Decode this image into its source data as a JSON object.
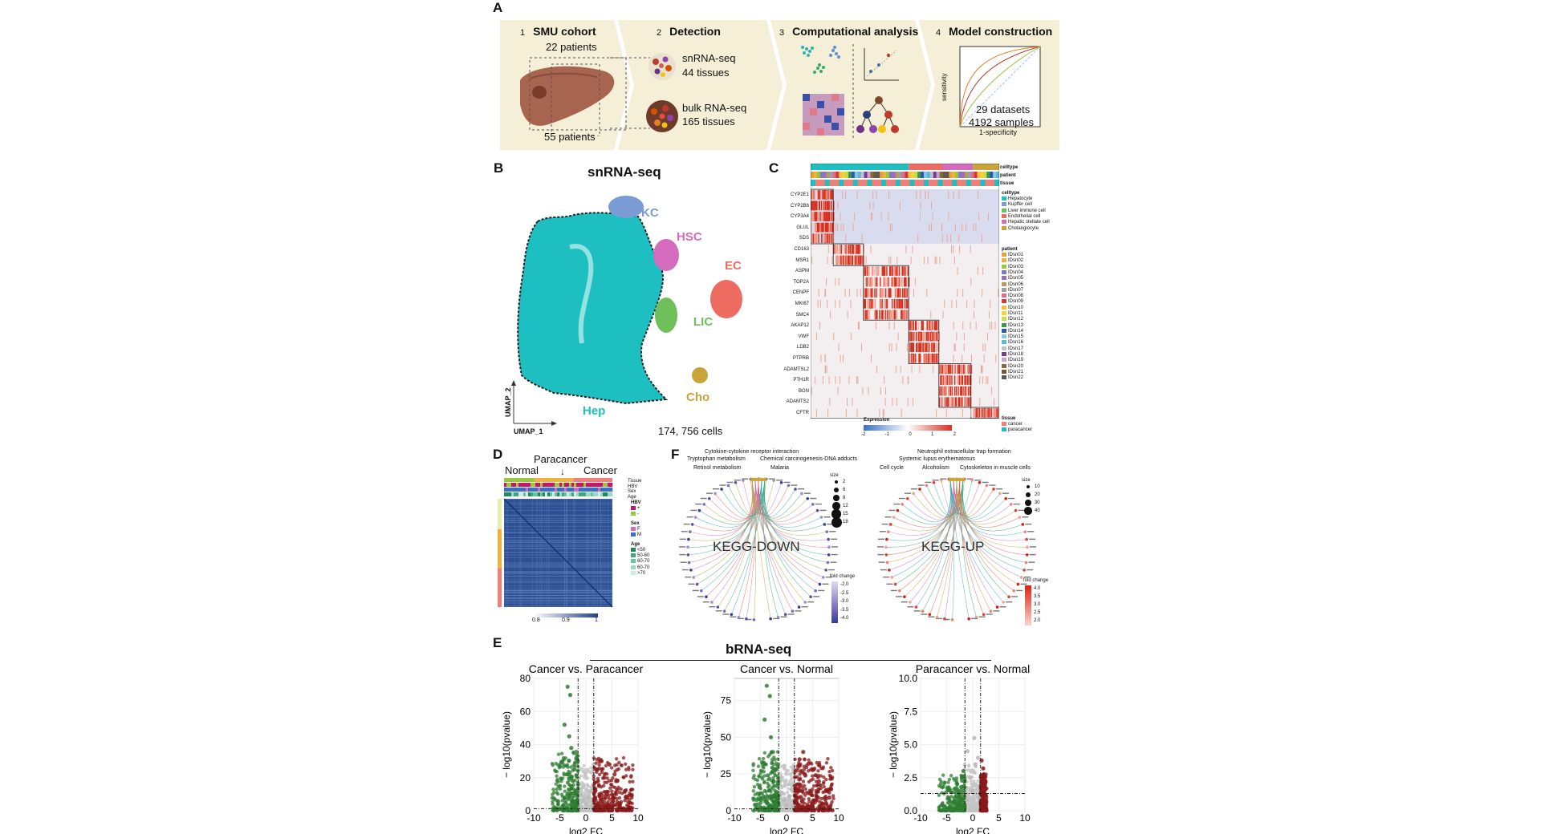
{
  "panels": {
    "A": "A",
    "B": "B",
    "C": "C",
    "D": "D",
    "E": "E",
    "F": "F"
  },
  "panelA": {
    "steps": [
      {
        "num": "1",
        "title": "SMU cohort"
      },
      {
        "num": "2",
        "title": "Detection"
      },
      {
        "num": "3",
        "title": "Computational analysis"
      },
      {
        "num": "4",
        "title": "Model construction"
      }
    ],
    "patients22": "22 patients",
    "patients55": "55 patients",
    "snrna": "snRNA-seq",
    "snrna_tissues": "44 tissues",
    "bulk": "bulk RNA-seq",
    "bulk_tissues": "165 tissues",
    "datasets": "29 datasets",
    "samples": "4192 samples",
    "roc_y": "sensitivity",
    "roc_x": "1-specificity"
  },
  "panelB": {
    "title": "snRNA-seq",
    "clusters": [
      "KC",
      "HSC",
      "EC",
      "LIC",
      "Cho",
      "Hep"
    ],
    "cluster_colors": {
      "KC": "#7b9bd6",
      "HSC": "#d46bbf",
      "EC": "#ee6b62",
      "LIC": "#6fbf5a",
      "Cho": "#c9a43a",
      "Hep": "#1dbfc1"
    },
    "umap_x": "UMAP_1",
    "umap_y": "UMAP_2",
    "cells": "174, 756 cells"
  },
  "panelC": {
    "bar_labels": [
      "celltype",
      "patient",
      "tissue"
    ],
    "genes": [
      "CYP2E1",
      "CYP2B6",
      "CYP3A4",
      "GLUL",
      "SDS",
      "CD163",
      "MSR1",
      "ASPM",
      "TOP2A",
      "CENPF",
      "MKI67",
      "SMC4",
      "AKAP12",
      "VWF",
      "LDB2",
      "PTPRB",
      "ADAMTSL2",
      "PTH1R",
      "BGN",
      "ADAMTS2",
      "CFTR"
    ],
    "celltype_title": "celltype",
    "celltypes": [
      {
        "name": "Hepatocyte",
        "color": "#1dbfc1"
      },
      {
        "name": "Kupffer cell",
        "color": "#7b9bd6"
      },
      {
        "name": "Liver immune cell",
        "color": "#6fbf5a"
      },
      {
        "name": "Endothelial cell",
        "color": "#ee6b62"
      },
      {
        "name": "Hepatic stellate cell",
        "color": "#d46bbf"
      },
      {
        "name": "Cholangiocyte",
        "color": "#c9a43a"
      }
    ],
    "patient_title": "patient",
    "patients": [
      {
        "name": "IDsn01",
        "color": "#e8a13a"
      },
      {
        "name": "IDsn02",
        "color": "#f0b23c"
      },
      {
        "name": "IDsn03",
        "color": "#9bc53d"
      },
      {
        "name": "IDsn04",
        "color": "#7b7fc2"
      },
      {
        "name": "IDsn05",
        "color": "#9d6fb8"
      },
      {
        "name": "IDsn06",
        "color": "#b89a5a"
      },
      {
        "name": "IDsn07",
        "color": "#9aa0a8"
      },
      {
        "name": "IDsn08",
        "color": "#e26a8f"
      },
      {
        "name": "IDsn09",
        "color": "#d23a3a"
      },
      {
        "name": "IDsn10",
        "color": "#f2c23a"
      },
      {
        "name": "IDsn11",
        "color": "#f5d23c"
      },
      {
        "name": "IDsn12",
        "color": "#c8d94a"
      },
      {
        "name": "IDsn13",
        "color": "#3a9a4a"
      },
      {
        "name": "IDsn14",
        "color": "#2d5aa8"
      },
      {
        "name": "IDsn15",
        "color": "#8fc3e8"
      },
      {
        "name": "IDsn16",
        "color": "#5ab8d8"
      },
      {
        "name": "IDsn17",
        "color": "#c0c4c8"
      },
      {
        "name": "IDsn18",
        "color": "#7a3c8c"
      },
      {
        "name": "IDsn19",
        "color": "#c8a2d2"
      },
      {
        "name": "IDsn20",
        "color": "#8a6a3a"
      },
      {
        "name": "IDsn21",
        "color": "#6a5a3a"
      },
      {
        "name": "IDsn22",
        "color": "#5a5a5a"
      }
    ],
    "expression_title": "Expression",
    "expression_ticks": [
      "-2",
      "-1",
      "0",
      "1",
      "2"
    ],
    "tissue_title": "tissue",
    "tissues": [
      {
        "name": "cancer",
        "color": "#f07f7a"
      },
      {
        "name": "paracancer",
        "color": "#1dbfc1"
      }
    ]
  },
  "panelD": {
    "normal": "Normal",
    "paracancer": "Paracancer",
    "cancer": "Cancer",
    "bar_labels": [
      "Tissue",
      "HBV",
      "Sex",
      "Age"
    ],
    "hbv_title": "HBV",
    "hbv": [
      {
        "name": "+",
        "color": "#c2186b"
      },
      {
        "name": "-",
        "color": "#9bc53d"
      }
    ],
    "sex_title": "Sex",
    "sex": [
      {
        "name": "F",
        "color": "#d46bbf"
      },
      {
        "name": "M",
        "color": "#3a6fc2"
      }
    ],
    "age_title": "Age",
    "age": [
      {
        "name": "<50",
        "color": "#1e8a5a"
      },
      {
        "name": "50-60",
        "color": "#3fa878"
      },
      {
        "name": "60-70",
        "color": "#6cc2a0"
      },
      {
        "name": "60-70",
        "color": "#9ad8c4"
      },
      {
        "name": ">70",
        "color": "#c8ecec"
      }
    ],
    "scale_ticks": [
      "0.8",
      "0.9",
      "1"
    ]
  },
  "panelF": {
    "down_title": "KEGG-DOWN",
    "up_title": "KEGG-UP",
    "down_terms": [
      {
        "label": "Cytokine-cytokine receptor interaction",
        "color": "#b5a33a"
      },
      {
        "label": "Tryptophan metabolism",
        "color": "#c86fb8"
      },
      {
        "label": "Chemical carcinogenesis-DNA adducts",
        "color": "#e0605a"
      },
      {
        "label": "Retinol metabolism",
        "color": "#3aa8c8"
      },
      {
        "label": "Malaria",
        "color": "#3aa86a"
      }
    ],
    "up_terms": [
      {
        "label": "Neutrophil extracellular trap formation",
        "color": "#3aa8c8"
      },
      {
        "label": "Systemic lupus erythematosus",
        "color": "#c86fb8"
      },
      {
        "label": "Cell cycle",
        "color": "#b5a33a"
      },
      {
        "label": "Alcoholism",
        "color": "#e0605a"
      },
      {
        "label": "Cytoskeleton in muscle cells",
        "color": "#3aa86a"
      }
    ],
    "size_title": "size",
    "size_down": [
      "2",
      "6",
      "8",
      "12",
      "15",
      "18"
    ],
    "size_up": [
      "10",
      "20",
      "30",
      "40"
    ],
    "fc_title": "fold change",
    "fc_down": [
      "-2.0",
      "-2.5",
      "-3.0",
      "-3.5",
      "-4.0"
    ],
    "fc_up": [
      "4.0",
      "3.5",
      "3.0",
      "2.5",
      "2.0"
    ]
  },
  "panelE": {
    "title": "bRNA-seq",
    "ylabel": "− log10(pvalue)",
    "xlabel": "log2 FC"
  },
  "chart_data": [
    {
      "type": "scatter",
      "title": "Cancer vs. Paracancer",
      "xlabel": "log2 FC",
      "ylabel": "− log10(pvalue)",
      "xlim": [
        -10,
        10
      ],
      "ylim": [
        0,
        80
      ],
      "xticks": [
        "-10",
        "-5",
        "0",
        "5",
        "10"
      ],
      "yticks": [
        "0",
        "20",
        "40",
        "60",
        "80"
      ],
      "thresholds": {
        "x": [
          -1.5,
          1.5
        ],
        "y": 1.3
      },
      "series": [
        {
          "color": "#2e7d32",
          "points": [
            [
              -3.5,
              75
            ],
            [
              -3.0,
              70
            ],
            [
              -4.1,
              52
            ],
            [
              -3.2,
              45
            ],
            [
              -2.8,
              38
            ],
            [
              -4.5,
              30
            ],
            [
              -2.2,
              25
            ],
            [
              -3.6,
              22
            ],
            [
              -2.5,
              18
            ],
            [
              -5.0,
              15
            ],
            [
              -2.0,
              12
            ],
            [
              -3.0,
              10
            ],
            [
              -4.0,
              8
            ],
            [
              -2.4,
              6
            ],
            [
              -1.8,
              4
            ]
          ]
        },
        {
          "color": "#8b1a1a",
          "points": [
            [
              3.0,
              30
            ],
            [
              2.2,
              25
            ],
            [
              4.5,
              28
            ],
            [
              5.5,
              22
            ],
            [
              3.5,
              20
            ],
            [
              6.0,
              18
            ],
            [
              2.5,
              15
            ],
            [
              7.5,
              12
            ],
            [
              4.0,
              10
            ],
            [
              8.0,
              8
            ],
            [
              3.0,
              6
            ],
            [
              5.0,
              5
            ],
            [
              2.0,
              4
            ],
            [
              6.5,
              3
            ]
          ]
        },
        {
          "color": "#b8b8b8",
          "points": [
            [
              -1.0,
              10
            ],
            [
              0.5,
              8
            ],
            [
              1.0,
              12
            ],
            [
              -0.5,
              6
            ],
            [
              0.0,
              4
            ],
            [
              1.2,
              3
            ],
            [
              -1.2,
              2
            ]
          ]
        }
      ]
    },
    {
      "type": "scatter",
      "title": "Cancer vs. Normal",
      "xlabel": "log2 FC",
      "ylabel": "− log10(pvalue)",
      "xlim": [
        -10,
        10
      ],
      "ylim": [
        0,
        90
      ],
      "xticks": [
        "-10",
        "-5",
        "0",
        "5",
        "10"
      ],
      "yticks": [
        "0",
        "25",
        "50",
        "75"
      ],
      "thresholds": {
        "x": [
          -1.5,
          1.5
        ],
        "y": 1.3
      },
      "series": [
        {
          "color": "#2e7d32",
          "points": [
            [
              -3.8,
              85
            ],
            [
              -3.2,
              78
            ],
            [
              -4.2,
              62
            ],
            [
              -3.0,
              50
            ],
            [
              -2.6,
              40
            ],
            [
              -4.6,
              32
            ],
            [
              -2.2,
              28
            ],
            [
              -3.6,
              24
            ],
            [
              -2.5,
              20
            ],
            [
              -5.2,
              16
            ],
            [
              -2.0,
              12
            ],
            [
              -3.1,
              10
            ],
            [
              -4.1,
              8
            ],
            [
              -2.4,
              5
            ]
          ]
        },
        {
          "color": "#8b1a1a",
          "points": [
            [
              3.2,
              40
            ],
            [
              2.5,
              35
            ],
            [
              4.2,
              32
            ],
            [
              5.2,
              28
            ],
            [
              3.6,
              24
            ],
            [
              6.2,
              20
            ],
            [
              2.4,
              18
            ],
            [
              7.6,
              14
            ],
            [
              4.2,
              12
            ],
            [
              8.2,
              9
            ],
            [
              3.0,
              6
            ],
            [
              5.0,
              5
            ],
            [
              2.2,
              4
            ],
            [
              6.6,
              3
            ]
          ]
        },
        {
          "color": "#b8b8b8",
          "points": [
            [
              -1.0,
              12
            ],
            [
              0.5,
              10
            ],
            [
              1.0,
              14
            ],
            [
              -0.5,
              7
            ],
            [
              0.0,
              4
            ],
            [
              1.2,
              3
            ],
            [
              -1.2,
              2
            ]
          ]
        }
      ]
    },
    {
      "type": "scatter",
      "title": "Paracancer vs. Normal",
      "xlabel": "log2 FC",
      "ylabel": "− log10(pvalue)",
      "xlim": [
        -10,
        10
      ],
      "ylim": [
        0,
        10
      ],
      "xticks": [
        "-10",
        "-5",
        "0",
        "5",
        "10"
      ],
      "yticks": [
        "0.0",
        "2.5",
        "5.0",
        "7.5",
        "10.0"
      ],
      "thresholds": {
        "x": [
          -1.5,
          1.5
        ],
        "y": 1.3
      },
      "series": [
        {
          "color": "#2e7d32",
          "points": [
            [
              -1.8,
              3.0
            ],
            [
              -2.0,
              2.6
            ],
            [
              -1.6,
              2.2
            ],
            [
              -2.2,
              1.8
            ],
            [
              -1.7,
              1.5
            ]
          ]
        },
        {
          "color": "#8b1a1a",
          "points": [
            [
              1.7,
              3.8
            ],
            [
              2.0,
              3.2
            ],
            [
              1.8,
              2.6
            ],
            [
              2.2,
              2.2
            ],
            [
              1.6,
              1.8
            ]
          ]
        },
        {
          "color": "#b8b8b8",
          "points": [
            [
              -1.0,
              4.5
            ],
            [
              0.5,
              3.5
            ],
            [
              1.0,
              4.0
            ],
            [
              -0.5,
              2.5
            ],
            [
              0.0,
              1.5
            ],
            [
              1.2,
              1.0
            ],
            [
              -1.2,
              0.8
            ],
            [
              0.3,
              5.5
            ]
          ]
        }
      ]
    }
  ]
}
